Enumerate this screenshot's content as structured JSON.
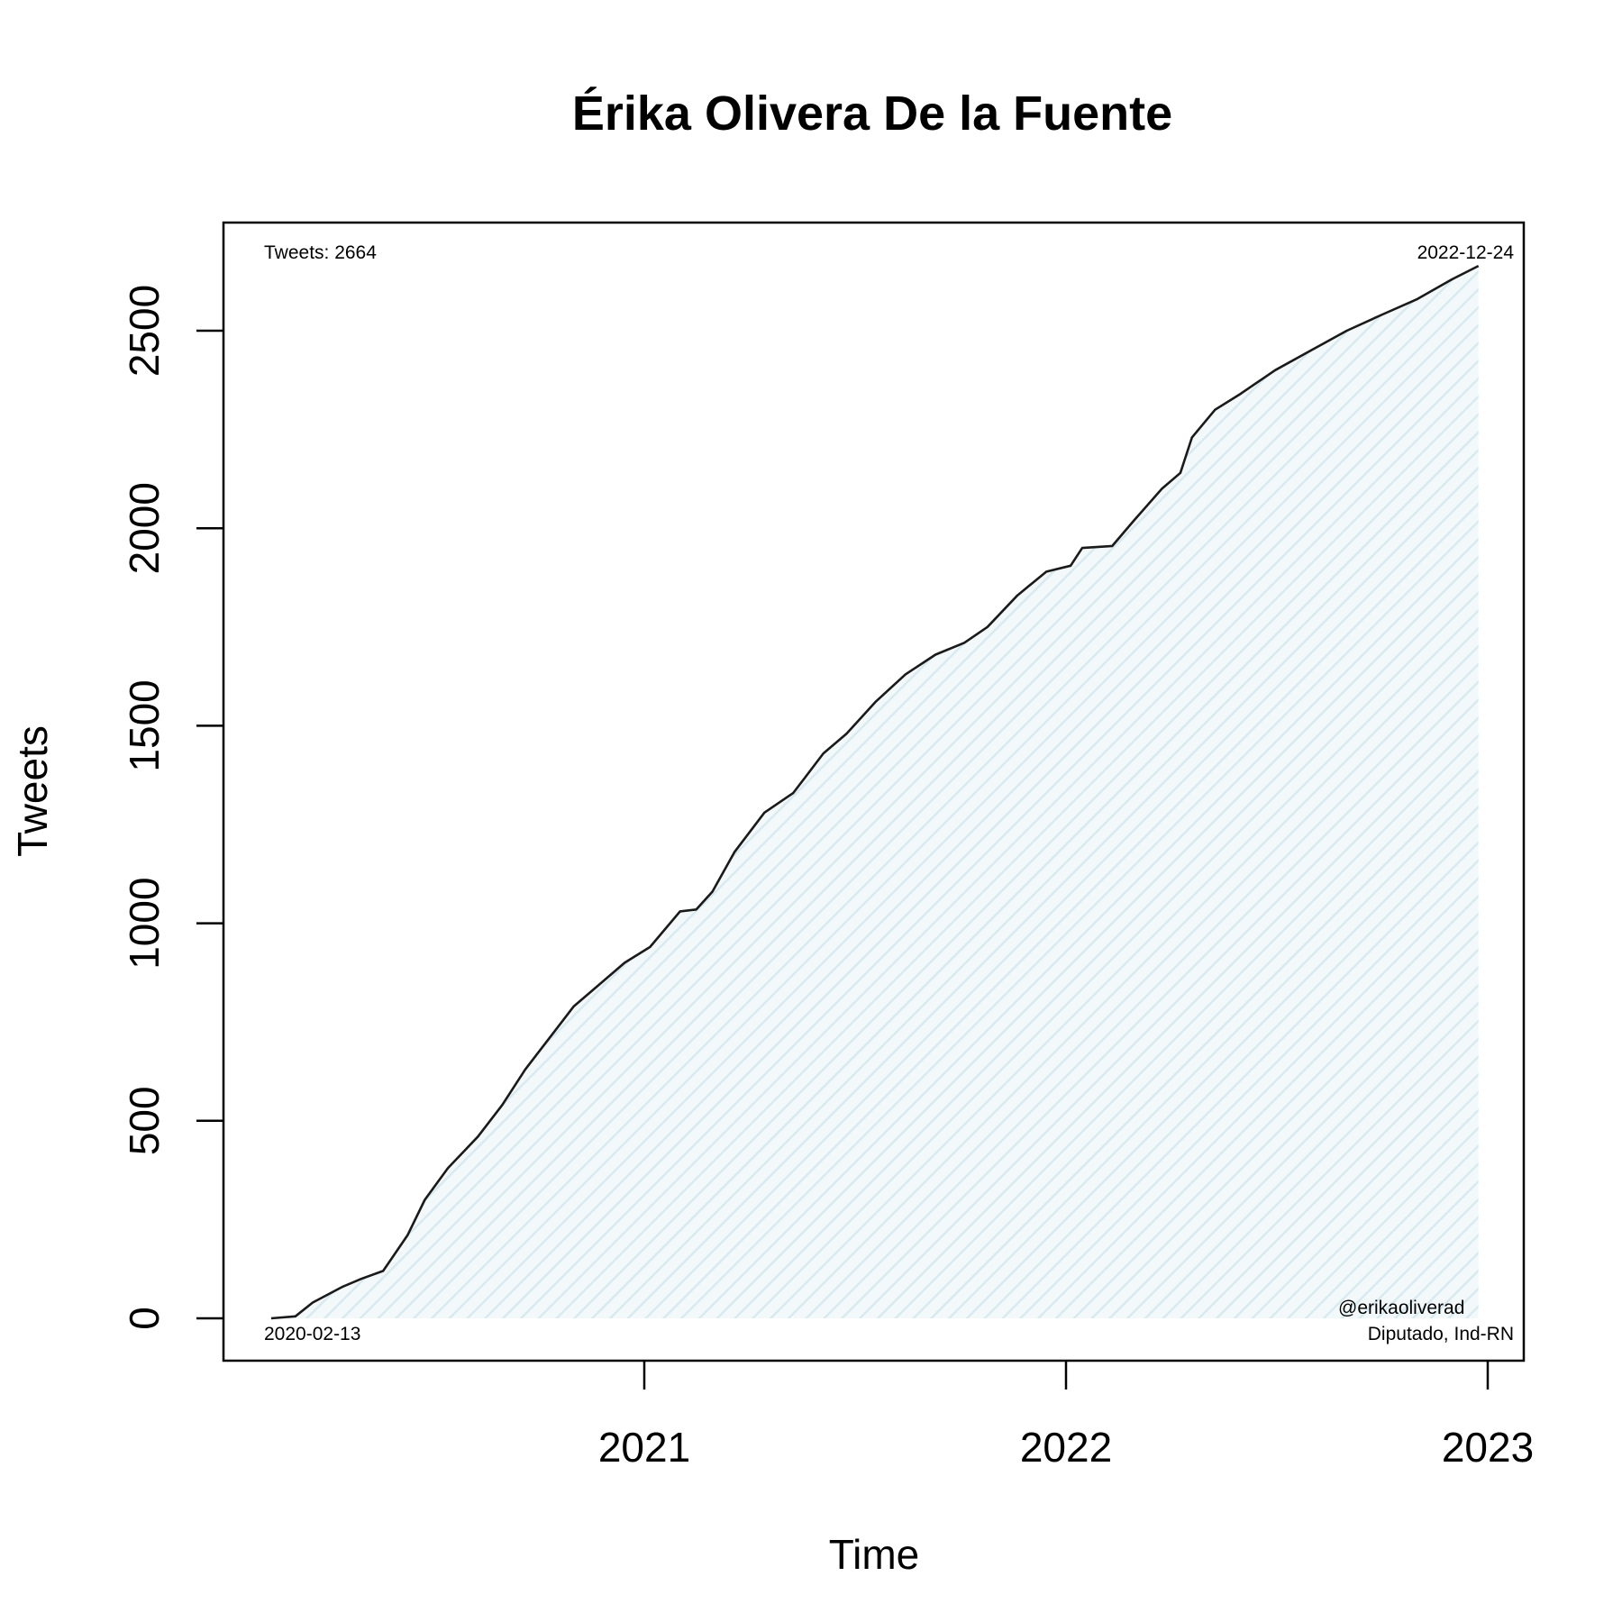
{
  "chart_data": {
    "type": "area",
    "title": "Érika Olivera De la Fuente",
    "xlabel": "Time",
    "ylabel": "Tweets",
    "x_ticks": [
      "2021",
      "2022",
      "2023"
    ],
    "x_range": [
      "2020-02-13",
      "2022-12-24"
    ],
    "y_ticks": [
      0,
      500,
      1000,
      1500,
      2000,
      2500
    ],
    "ylim": [
      0,
      2664
    ],
    "grid": false,
    "annotations": {
      "total": "Tweets: 2664",
      "last_date": "2022-12-24",
      "first_date": "2020-02-13",
      "handle": "@erikaoliverad",
      "role": "Diputado, Ind-RN"
    },
    "colors": {
      "line": "#1a1a1a",
      "fill": "#e9f3f6"
    },
    "series": [
      {
        "x": [
          "2020-02-13",
          "2020-03-05",
          "2020-03-20",
          "2020-04-15",
          "2020-05-01",
          "2020-05-20",
          "2020-06-10",
          "2020-06-25",
          "2020-07-15",
          "2020-08-10",
          "2020-08-31",
          "2020-09-20",
          "2020-10-11",
          "2020-11-01",
          "2020-11-25",
          "2020-12-15",
          "2021-01-06",
          "2021-02-01",
          "2021-02-15",
          "2021-03-01",
          "2021-03-20",
          "2021-04-15",
          "2021-05-10",
          "2021-06-05",
          "2021-06-25",
          "2021-07-20",
          "2021-08-15",
          "2021-09-10",
          "2021-10-05",
          "2021-10-25",
          "2021-11-20",
          "2021-12-15",
          "2022-01-05",
          "2022-01-15",
          "2022-02-10",
          "2022-03-01",
          "2022-03-25",
          "2022-04-10",
          "2022-04-20",
          "2022-05-10",
          "2022-06-01",
          "2022-07-01",
          "2022-08-01",
          "2022-09-01",
          "2022-10-01",
          "2022-11-01",
          "2022-12-01",
          "2022-12-24"
        ],
        "y": [
          0,
          5,
          40,
          80,
          100,
          120,
          210,
          300,
          380,
          460,
          540,
          630,
          710,
          790,
          850,
          900,
          940,
          1030,
          1035,
          1080,
          1180,
          1280,
          1330,
          1430,
          1480,
          1560,
          1630,
          1680,
          1710,
          1750,
          1830,
          1890,
          1905,
          1950,
          1955,
          2020,
          2100,
          2140,
          2230,
          2300,
          2340,
          2400,
          2450,
          2500,
          2540,
          2580,
          2630,
          2664
        ]
      }
    ]
  }
}
